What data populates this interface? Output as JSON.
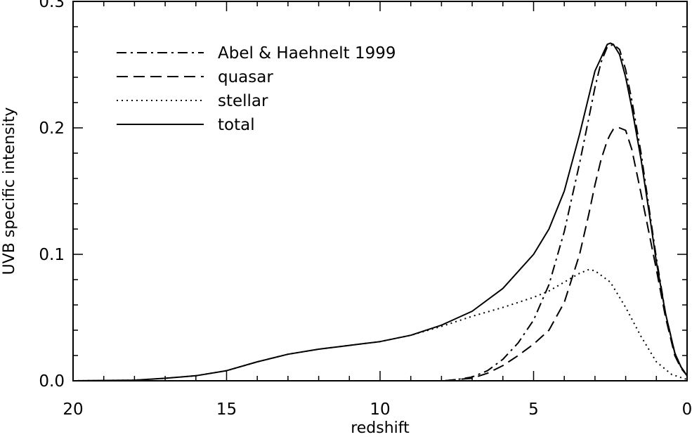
{
  "chart_data": {
    "type": "line",
    "title": "",
    "xlabel": "redshift",
    "ylabel": "UVB specific intensity",
    "xlim": [
      20,
      0
    ],
    "ylim": [
      0,
      0.3
    ],
    "x_reversed": true,
    "xticks": [
      20,
      15,
      10,
      5,
      0
    ],
    "xtick_labels": [
      "20",
      "15",
      "10",
      "5",
      "0"
    ],
    "yticks": [
      0.0,
      0.1,
      0.2,
      0.3
    ],
    "ytick_labels": [
      "0.0",
      "0.1",
      "0.2",
      "0.3"
    ],
    "grid": false,
    "legend_position": "top-left",
    "series": [
      {
        "name": "Abel & Haehnelt 1999",
        "dash": "dash-dot",
        "x": [
          7.9,
          7.5,
          7.0,
          6.5,
          6.0,
          5.5,
          5.0,
          4.5,
          4.0,
          3.5,
          3.2,
          3.0,
          2.8,
          2.6,
          2.4,
          2.2,
          2.0,
          1.8,
          1.5,
          1.2,
          1.0,
          0.7,
          0.4,
          0.2,
          0.0
        ],
        "y": [
          0.0,
          0.001,
          0.003,
          0.008,
          0.017,
          0.03,
          0.048,
          0.076,
          0.118,
          0.172,
          0.208,
          0.232,
          0.252,
          0.264,
          0.266,
          0.262,
          0.246,
          0.222,
          0.18,
          0.13,
          0.097,
          0.053,
          0.022,
          0.011,
          0.004
        ]
      },
      {
        "name": "quasar",
        "dash": "dashed",
        "x": [
          7.9,
          7.5,
          7.0,
          6.5,
          6.0,
          5.5,
          5.0,
          4.5,
          4.0,
          3.5,
          3.2,
          3.0,
          2.8,
          2.6,
          2.5,
          2.4,
          2.2,
          2.0,
          1.8,
          1.5,
          1.2,
          1.0,
          0.7,
          0.4,
          0.2,
          0.0
        ],
        "y": [
          0.0,
          0.001,
          0.002,
          0.006,
          0.012,
          0.02,
          0.029,
          0.04,
          0.062,
          0.1,
          0.132,
          0.155,
          0.175,
          0.19,
          0.195,
          0.199,
          0.2,
          0.198,
          0.183,
          0.148,
          0.112,
          0.088,
          0.05,
          0.02,
          0.01,
          0.004
        ]
      },
      {
        "name": "stellar",
        "dash": "dotted",
        "x": [
          20,
          18,
          17,
          16,
          15,
          14,
          13,
          12,
          11,
          10,
          9,
          8,
          7,
          6,
          5,
          4.5,
          4.0,
          3.5,
          3.2,
          3.0,
          2.5,
          2.0,
          1.5,
          1.0,
          0.5,
          0.0
        ],
        "y": [
          0.0,
          0.0005,
          0.002,
          0.004,
          0.008,
          0.015,
          0.021,
          0.025,
          0.028,
          0.031,
          0.036,
          0.043,
          0.051,
          0.058,
          0.066,
          0.071,
          0.078,
          0.085,
          0.088,
          0.087,
          0.078,
          0.058,
          0.035,
          0.015,
          0.005,
          0.001
        ]
      },
      {
        "name": "total",
        "dash": "solid",
        "x": [
          20,
          18,
          17,
          16,
          15,
          14,
          13,
          12,
          11,
          10,
          9,
          8,
          7,
          6,
          5,
          4.5,
          4.0,
          3.5,
          3.0,
          2.6,
          2.5,
          2.4,
          2.2,
          2.0,
          1.8,
          1.5,
          1.2,
          1.0,
          0.7,
          0.4,
          0.2,
          0.0
        ],
        "y": [
          0.0,
          0.0005,
          0.002,
          0.004,
          0.008,
          0.015,
          0.021,
          0.025,
          0.028,
          0.031,
          0.036,
          0.044,
          0.055,
          0.073,
          0.1,
          0.12,
          0.15,
          0.195,
          0.245,
          0.266,
          0.267,
          0.266,
          0.258,
          0.24,
          0.216,
          0.175,
          0.127,
          0.094,
          0.053,
          0.022,
          0.011,
          0.004
        ]
      }
    ]
  }
}
